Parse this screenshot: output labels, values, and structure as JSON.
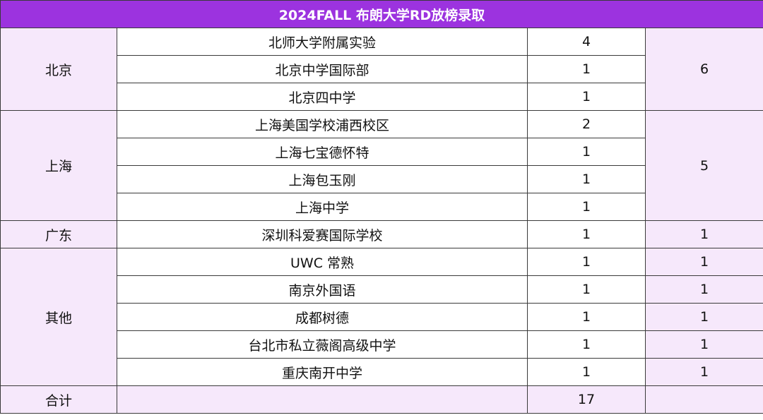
{
  "title": "2024FALL 布朗大学RD放榜录取",
  "regions": [
    {
      "name": "北京",
      "total": "6",
      "schools": [
        {
          "school": "北师大学附属实验",
          "count": "4"
        },
        {
          "school": "北京中学国际部",
          "count": "1"
        },
        {
          "school": "北京四中学",
          "count": "1"
        }
      ]
    },
    {
      "name": "上海",
      "total": "5",
      "schools": [
        {
          "school": "上海美国学校浦西校区",
          "count": "2"
        },
        {
          "school": "上海七宝德怀特",
          "count": "1"
        },
        {
          "school": "上海包玉刚",
          "count": "1"
        },
        {
          "school": "上海中学",
          "count": "1"
        }
      ]
    },
    {
      "name": "广东",
      "total": "1",
      "schools": [
        {
          "school": "深圳科爱赛国际学校",
          "count": "1"
        }
      ]
    },
    {
      "name": "其他",
      "schools": [
        {
          "school": "UWC 常熟",
          "count": "1",
          "total": "1"
        },
        {
          "school": "南京外国语",
          "count": "1",
          "total": "1"
        },
        {
          "school": "成都树德",
          "count": "1",
          "total": "1"
        },
        {
          "school": "台北市私立薇阁高级中学",
          "count": "1",
          "total": "1"
        },
        {
          "school": "重庆南开中学",
          "count": "1",
          "total": "1"
        }
      ]
    }
  ],
  "footer": {
    "label": "合计",
    "total": "17"
  }
}
